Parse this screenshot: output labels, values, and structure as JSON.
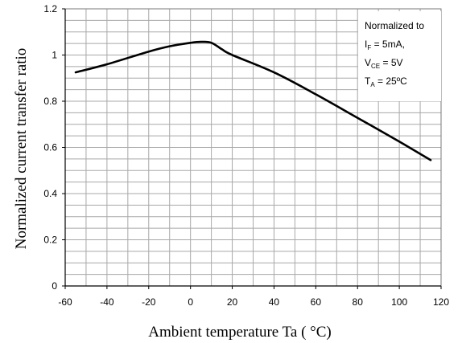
{
  "chart_data": {
    "type": "line",
    "xlabel": "Ambient temperature Ta ( °C)",
    "ylabel": "Normalized current transfer ratio",
    "xlim": [
      -60,
      120
    ],
    "ylim": [
      0,
      1.2
    ],
    "x_ticks": [
      "-60",
      "-40",
      "-20",
      "0",
      "20",
      "40",
      "60",
      "80",
      "100",
      "120"
    ],
    "y_ticks": [
      "0",
      "0.2",
      "0.4",
      "0.6",
      "0.8",
      "1",
      "1.2"
    ],
    "grid": true,
    "annotation": {
      "line1": "Normalized to",
      "line2_main": "I",
      "line2_sub": "F",
      "line2_rest": " = 5mA,",
      "line3_main": "V",
      "line3_sub": "CE",
      "line3_rest": " = 5V",
      "line4_main": "T",
      "line4_sub": "A",
      "line4_rest": " = 25ºC"
    },
    "series": [
      {
        "color": "#000000",
        "points": [
          [
            -55,
            0.925
          ],
          [
            -40,
            0.96
          ],
          [
            -20,
            1.015
          ],
          [
            -10,
            1.038
          ],
          [
            0,
            1.053
          ],
          [
            5,
            1.057
          ],
          [
            10,
            1.053
          ],
          [
            15,
            1.025
          ],
          [
            20,
            1.0
          ],
          [
            40,
            0.925
          ],
          [
            60,
            0.83
          ],
          [
            80,
            0.728
          ],
          [
            100,
            0.625
          ],
          [
            115,
            0.545
          ]
        ]
      }
    ]
  }
}
